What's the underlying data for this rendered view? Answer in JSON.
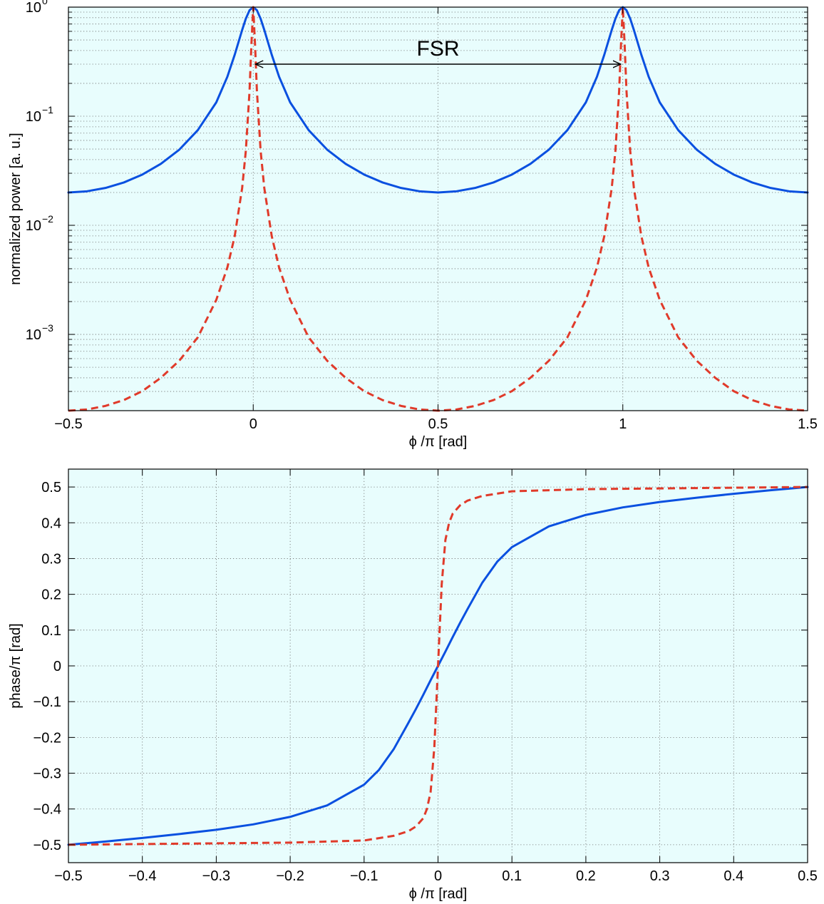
{
  "chart_data": [
    {
      "type": "line",
      "title": "",
      "xlabel": "ϕ /π [rad]",
      "ylabel": "normalized power [a. u.]",
      "xlim": [
        -0.5,
        1.5
      ],
      "ylim": [
        0.0002,
        1
      ],
      "yscale": "log",
      "grid": true,
      "background": "#e8fdfd",
      "x_ticks": [
        {
          "value": -0.5,
          "label": "−0.5"
        },
        {
          "value": 0,
          "label": "0"
        },
        {
          "value": 0.5,
          "label": "0.5"
        },
        {
          "value": 1,
          "label": "1"
        },
        {
          "value": 1.5,
          "label": "1.5"
        }
      ],
      "y_ticks": [
        {
          "value": 0.001,
          "base": "10",
          "exp": "−3"
        },
        {
          "value": 0.01,
          "base": "10",
          "exp": "−2"
        },
        {
          "value": 0.1,
          "base": "10",
          "exp": "−1"
        },
        {
          "value": 1,
          "base": "10",
          "exp": "0"
        }
      ],
      "series": [
        {
          "style": "solid",
          "color": "#0a50e0",
          "x": [
            -0.5,
            -0.45,
            -0.4,
            -0.35,
            -0.3,
            -0.25,
            -0.2,
            -0.15,
            -0.1,
            -0.07,
            -0.05,
            -0.03,
            -0.02,
            -0.01,
            0,
            0.01,
            0.02,
            0.03,
            0.05,
            0.07,
            0.1,
            0.15,
            0.2,
            0.25,
            0.3,
            0.35,
            0.4,
            0.45,
            0.5,
            0.55,
            0.6,
            0.65,
            0.7,
            0.75,
            0.8,
            0.85,
            0.9,
            0.93,
            0.95,
            0.97,
            0.98,
            0.99,
            1,
            1.01,
            1.02,
            1.03,
            1.05,
            1.07,
            1.1,
            1.15,
            1.2,
            1.25,
            1.3,
            1.35,
            1.4,
            1.45,
            1.5
          ],
          "y": [
            0.02,
            0.0205,
            0.022,
            0.0247,
            0.0292,
            0.0366,
            0.0494,
            0.0745,
            0.1339,
            0.2299,
            0.3669,
            0.6167,
            0.7837,
            0.9357,
            1,
            0.9357,
            0.7837,
            0.6167,
            0.3669,
            0.2299,
            0.1339,
            0.0745,
            0.0494,
            0.0366,
            0.0292,
            0.0247,
            0.022,
            0.0205,
            0.02,
            0.0205,
            0.022,
            0.0247,
            0.0292,
            0.0366,
            0.0494,
            0.0745,
            0.1339,
            0.2299,
            0.3669,
            0.6167,
            0.7837,
            0.9357,
            1,
            0.9357,
            0.7837,
            0.6167,
            0.3669,
            0.2299,
            0.1339,
            0.0745,
            0.0494,
            0.0366,
            0.0292,
            0.0247,
            0.022,
            0.0205,
            0.02
          ]
        },
        {
          "style": "dashed",
          "color": "#e03a2a",
          "x": [
            -0.5,
            -0.45,
            -0.4,
            -0.35,
            -0.3,
            -0.25,
            -0.2,
            -0.15,
            -0.1,
            -0.07,
            -0.05,
            -0.03,
            -0.02,
            -0.01,
            -0.005,
            0,
            0.005,
            0.01,
            0.02,
            0.03,
            0.05,
            0.07,
            0.1,
            0.15,
            0.2,
            0.25,
            0.3,
            0.35,
            0.4,
            0.45,
            0.5,
            0.55,
            0.6,
            0.65,
            0.7,
            0.75,
            0.8,
            0.85,
            0.9,
            0.93,
            0.95,
            0.97,
            0.98,
            0.99,
            0.995,
            1,
            1.005,
            1.01,
            1.02,
            1.03,
            1.05,
            1.07,
            1.1,
            1.15,
            1.2,
            1.25,
            1.3,
            1.35,
            1.4,
            1.45,
            1.5
          ],
          "y": [
            0.0002,
            0.000205,
            0.000221,
            0.00025,
            0.000302,
            0.0004,
            0.000574,
            0.000939,
            0.00207,
            0.0041,
            0.00799,
            0.0219,
            0.0482,
            0.169,
            0.448,
            1,
            0.448,
            0.169,
            0.0482,
            0.0219,
            0.00799,
            0.0041,
            0.00207,
            0.000939,
            0.000574,
            0.0004,
            0.000302,
            0.00025,
            0.000221,
            0.000205,
            0.0002,
            0.000205,
            0.000221,
            0.00025,
            0.000302,
            0.0004,
            0.000574,
            0.000939,
            0.00207,
            0.0041,
            0.00799,
            0.0219,
            0.0482,
            0.169,
            0.448,
            1,
            0.448,
            0.169,
            0.0482,
            0.0219,
            0.00799,
            0.0041,
            0.00207,
            0.000939,
            0.000574,
            0.0004,
            0.000302,
            0.00025,
            0.000221,
            0.000205,
            0.0002
          ]
        }
      ],
      "annotations": [
        {
          "type": "double-arrow",
          "x_start": 0,
          "x_end": 1,
          "y": 0.3,
          "label": "FSR"
        }
      ]
    },
    {
      "type": "line",
      "title": "",
      "xlabel": "ϕ /π [rad]",
      "ylabel": "phase/π [rad]",
      "xlim": [
        -0.5,
        0.5
      ],
      "ylim": [
        -0.55,
        0.55
      ],
      "grid": true,
      "background": "#e8fdfd",
      "x_ticks": [
        {
          "value": -0.5,
          "label": "−0.5"
        },
        {
          "value": -0.4,
          "label": "−0.4"
        },
        {
          "value": -0.3,
          "label": "−0.3"
        },
        {
          "value": -0.2,
          "label": "−0.2"
        },
        {
          "value": -0.1,
          "label": "−0.1"
        },
        {
          "value": 0,
          "label": "0"
        },
        {
          "value": 0.1,
          "label": "0.1"
        },
        {
          "value": 0.2,
          "label": "0.2"
        },
        {
          "value": 0.3,
          "label": "0.3"
        },
        {
          "value": 0.4,
          "label": "0.4"
        },
        {
          "value": 0.5,
          "label": "0.5"
        }
      ],
      "y_ticks": [
        {
          "value": -0.5,
          "label": "−0.5"
        },
        {
          "value": -0.4,
          "label": "−0.4"
        },
        {
          "value": -0.3,
          "label": "−0.3"
        },
        {
          "value": -0.2,
          "label": "−0.2"
        },
        {
          "value": -0.1,
          "label": "−0.1"
        },
        {
          "value": 0,
          "label": "0"
        },
        {
          "value": 0.1,
          "label": "0.1"
        },
        {
          "value": 0.2,
          "label": "0.2"
        },
        {
          "value": 0.3,
          "label": "0.3"
        },
        {
          "value": 0.4,
          "label": "0.4"
        },
        {
          "value": 0.5,
          "label": "0.5"
        }
      ],
      "series": [
        {
          "style": "solid",
          "color": "#0a50e0",
          "x": [
            -0.5,
            -0.45,
            -0.4,
            -0.35,
            -0.3,
            -0.25,
            -0.2,
            -0.15,
            -0.1,
            -0.08,
            -0.06,
            -0.04,
            -0.03,
            -0.02,
            -0.01,
            0,
            0.01,
            0.02,
            0.03,
            0.04,
            0.06,
            0.08,
            0.1,
            0.15,
            0.2,
            0.25,
            0.3,
            0.35,
            0.4,
            0.45,
            0.5
          ],
          "y": [
            -0.5,
            -0.491,
            -0.481,
            -0.47,
            -0.458,
            -0.443,
            -0.422,
            -0.39,
            -0.332,
            -0.291,
            -0.233,
            -0.159,
            -0.121,
            -0.081,
            -0.04,
            0,
            0.04,
            0.081,
            0.121,
            0.159,
            0.233,
            0.291,
            0.332,
            0.39,
            0.422,
            0.443,
            0.458,
            0.47,
            0.481,
            0.491,
            0.5
          ]
        },
        {
          "style": "dashed",
          "color": "#e03a2a",
          "x": [
            -0.5,
            -0.4,
            -0.3,
            -0.2,
            -0.1,
            -0.06,
            -0.04,
            -0.03,
            -0.02,
            -0.015,
            -0.01,
            -0.005,
            0,
            0.005,
            0.01,
            0.015,
            0.02,
            0.03,
            0.04,
            0.06,
            0.1,
            0.2,
            0.3,
            0.4,
            0.5
          ],
          "y": [
            -0.5,
            -0.498,
            -0.496,
            -0.494,
            -0.488,
            -0.475,
            -0.462,
            -0.449,
            -0.426,
            -0.4,
            -0.352,
            -0.228,
            0,
            0.228,
            0.352,
            0.4,
            0.426,
            0.449,
            0.462,
            0.475,
            0.488,
            0.494,
            0.496,
            0.498,
            0.5
          ]
        }
      ],
      "annotations": []
    }
  ]
}
